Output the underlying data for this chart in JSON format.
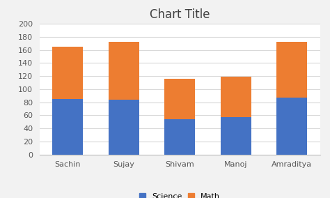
{
  "title": "Chart Title",
  "categories": [
    "Sachin",
    "Sujay",
    "Shivam",
    "Manoj",
    "Amraditya"
  ],
  "science": [
    85,
    84,
    54,
    57,
    87
  ],
  "math": [
    80,
    88,
    62,
    62,
    85
  ],
  "science_color": "#4472C4",
  "math_color": "#ED7D31",
  "ylim": [
    0,
    200
  ],
  "yticks": [
    0,
    20,
    40,
    60,
    80,
    100,
    120,
    140,
    160,
    180,
    200
  ],
  "legend_labels": [
    "Science",
    "Math"
  ],
  "title_fontsize": 12,
  "tick_fontsize": 8,
  "legend_fontsize": 8,
  "bar_width": 0.55,
  "figure_bg": "#f2f2f2",
  "axes_bg": "#ffffff"
}
